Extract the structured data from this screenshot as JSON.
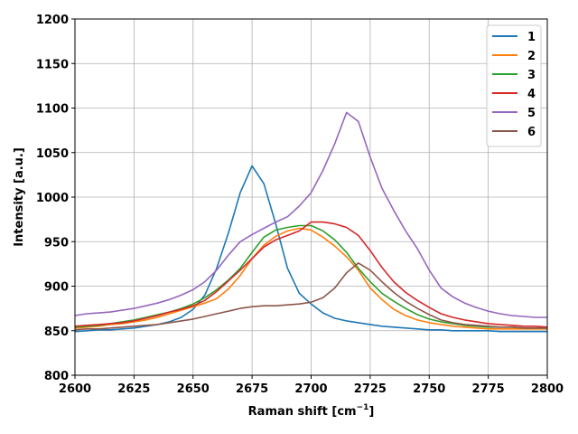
{
  "chart_data": {
    "type": "line",
    "title": "",
    "xlabel": "Raman shift [cm",
    "xlabel_sup": "−1",
    "xlabel_end": "]",
    "ylabel": "Intensity [a.u.]",
    "xlim": [
      2600,
      2800
    ],
    "ylim": [
      800,
      1200
    ],
    "xticks": [
      "2600",
      "2625",
      "2650",
      "2675",
      "2700",
      "2725",
      "2750",
      "2775",
      "2800"
    ],
    "yticks": [
      "800",
      "850",
      "900",
      "950",
      "1000",
      "1050",
      "1100",
      "1150",
      "1200"
    ],
    "grid": true,
    "legend_position": "top-right",
    "x": [
      2600,
      2605,
      2610,
      2615,
      2620,
      2625,
      2630,
      2635,
      2640,
      2645,
      2650,
      2655,
      2660,
      2665,
      2670,
      2675,
      2680,
      2685,
      2690,
      2695,
      2700,
      2705,
      2710,
      2715,
      2720,
      2725,
      2730,
      2735,
      2740,
      2745,
      2750,
      2755,
      2760,
      2765,
      2770,
      2775,
      2780,
      2785,
      2790,
      2795,
      2800
    ],
    "series": [
      {
        "name": "1",
        "color": "#1f77b4",
        "values": [
          849,
          850,
          851,
          851,
          852,
          853,
          855,
          857,
          860,
          865,
          874,
          890,
          920,
          960,
          1005,
          1035,
          1015,
          970,
          920,
          892,
          880,
          870,
          864,
          861,
          859,
          857,
          855,
          854,
          853,
          852,
          851,
          851,
          850,
          850,
          850,
          850,
          849,
          849,
          849,
          849,
          849
        ]
      },
      {
        "name": "2",
        "color": "#ff7f0e",
        "values": [
          853,
          854,
          855,
          857,
          858,
          860,
          862,
          865,
          869,
          873,
          877,
          881,
          886,
          897,
          912,
          931,
          946,
          956,
          962,
          965,
          963,
          955,
          945,
          933,
          918,
          898,
          885,
          874,
          867,
          862,
          859,
          857,
          855,
          854,
          853,
          852,
          852,
          852,
          852,
          852,
          852
        ]
      },
      {
        "name": "3",
        "color": "#2ca02c",
        "values": [
          854,
          855,
          856,
          858,
          860,
          862,
          865,
          868,
          871,
          875,
          880,
          887,
          896,
          907,
          920,
          938,
          955,
          963,
          966,
          968,
          968,
          962,
          952,
          938,
          920,
          905,
          892,
          883,
          875,
          868,
          863,
          860,
          858,
          856,
          855,
          854,
          854,
          854,
          853,
          853,
          853
        ]
      },
      {
        "name": "4",
        "color": "#d62728",
        "values": [
          855,
          856,
          857,
          858,
          859,
          861,
          864,
          867,
          871,
          874,
          878,
          884,
          894,
          906,
          918,
          931,
          944,
          952,
          957,
          962,
          972,
          972,
          970,
          966,
          957,
          940,
          921,
          905,
          893,
          884,
          876,
          869,
          865,
          862,
          860,
          858,
          857,
          856,
          855,
          855,
          854
        ]
      },
      {
        "name": "5",
        "color": "#9467bd",
        "values": [
          867,
          869,
          870,
          871,
          873,
          875,
          878,
          881,
          885,
          890,
          896,
          905,
          918,
          935,
          950,
          958,
          965,
          972,
          978,
          990,
          1005,
          1030,
          1060,
          1095,
          1085,
          1045,
          1010,
          985,
          962,
          942,
          918,
          898,
          888,
          881,
          876,
          872,
          869,
          867,
          866,
          865,
          865
        ]
      },
      {
        "name": "6",
        "color": "#8c564b",
        "values": [
          851,
          852,
          852,
          853,
          854,
          855,
          856,
          857,
          859,
          861,
          863,
          866,
          869,
          872,
          875,
          877,
          878,
          878,
          879,
          880,
          882,
          887,
          898,
          915,
          926,
          918,
          905,
          893,
          883,
          875,
          868,
          862,
          859,
          857,
          856,
          855,
          854,
          854,
          853,
          853,
          853
        ]
      }
    ]
  }
}
